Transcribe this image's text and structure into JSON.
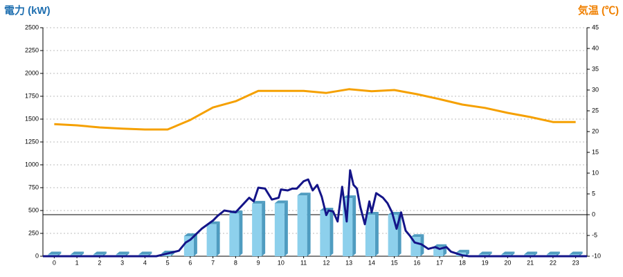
{
  "chart_data": {
    "type": "bar-line",
    "title": "電力 (kW)",
    "y2_title": "気温 (℃)",
    "xlim": [
      -0.5,
      23.5
    ],
    "xticks": [
      0,
      1,
      2,
      3,
      4,
      5,
      6,
      7,
      8,
      9,
      10,
      11,
      12,
      13,
      14,
      15,
      16,
      17,
      18,
      19,
      20,
      21,
      22,
      23
    ],
    "ylim": [
      0,
      2500
    ],
    "yticks": [
      0,
      250,
      500,
      750,
      1000,
      1250,
      1500,
      1750,
      2000,
      2250,
      2500
    ],
    "y2lim": [
      -10,
      45
    ],
    "y2ticks": [
      -10,
      -5,
      0,
      5,
      10,
      15,
      20,
      25,
      30,
      35,
      40,
      45
    ],
    "grid": true,
    "reference_line": {
      "axis": "y2",
      "value": 0
    },
    "series": [
      {
        "kind": "bar",
        "color": "#8dd0ec",
        "side_color": "#4f9cc0",
        "x": [
          0,
          1,
          2,
          3,
          4,
          5,
          6,
          7,
          8,
          9,
          10,
          11,
          12,
          13,
          14,
          15,
          16,
          17,
          18,
          19,
          20,
          21,
          22,
          23
        ],
        "values": [
          20,
          20,
          20,
          20,
          20,
          30,
          220,
          350,
          470,
          575,
          580,
          665,
          500,
          635,
          455,
          455,
          210,
          100,
          40,
          20,
          20,
          20,
          20,
          20
        ]
      },
      {
        "kind": "line",
        "color": "#f5a000",
        "axis": "y2",
        "x": [
          0,
          1,
          2,
          3,
          4,
          5,
          6,
          7,
          8,
          9,
          10,
          11,
          12,
          13,
          14,
          15,
          16,
          17,
          18,
          19,
          20,
          21,
          22,
          23
        ],
        "values": [
          21.8,
          21.5,
          21,
          20.7,
          20.5,
          20.5,
          22.8,
          25.8,
          27.3,
          29.8,
          29.8,
          29.8,
          29.3,
          30.2,
          29.7,
          30,
          29,
          27.8,
          26.5,
          25.7,
          24.5,
          23.5,
          22.3,
          22.3
        ]
      },
      {
        "kind": "line",
        "color": "#141488",
        "x": [
          -0.5,
          4.5,
          5,
          5.5,
          5.8,
          6,
          6.5,
          7,
          7.2,
          7.5,
          8,
          8.3,
          8.6,
          8.8,
          9,
          9.3,
          9.6,
          9.9,
          10,
          10.3,
          10.5,
          10.7,
          11,
          11.2,
          11.4,
          11.6,
          11.8,
          12,
          12.1,
          12.3,
          12.5,
          12.7,
          12.9,
          13.05,
          13.2,
          13.35,
          13.5,
          13.7,
          13.9,
          14,
          14.2,
          14.5,
          14.7,
          14.9,
          15.1,
          15.3,
          15.5,
          15.7,
          15.9,
          16.2,
          16.5,
          16.8,
          17,
          17.3,
          17.5,
          18,
          18.3,
          23.5
        ],
        "values": [
          0,
          0,
          30,
          60,
          150,
          180,
          300,
          390,
          440,
          500,
          480,
          560,
          640,
          600,
          750,
          740,
          620,
          640,
          730,
          720,
          740,
          740,
          820,
          840,
          720,
          780,
          650,
          450,
          500,
          490,
          380,
          760,
          380,
          940,
          780,
          740,
          540,
          350,
          600,
          480,
          690,
          640,
          580,
          480,
          300,
          480,
          280,
          220,
          150,
          130,
          80,
          100,
          80,
          100,
          50,
          10,
          0,
          0
        ]
      }
    ]
  }
}
